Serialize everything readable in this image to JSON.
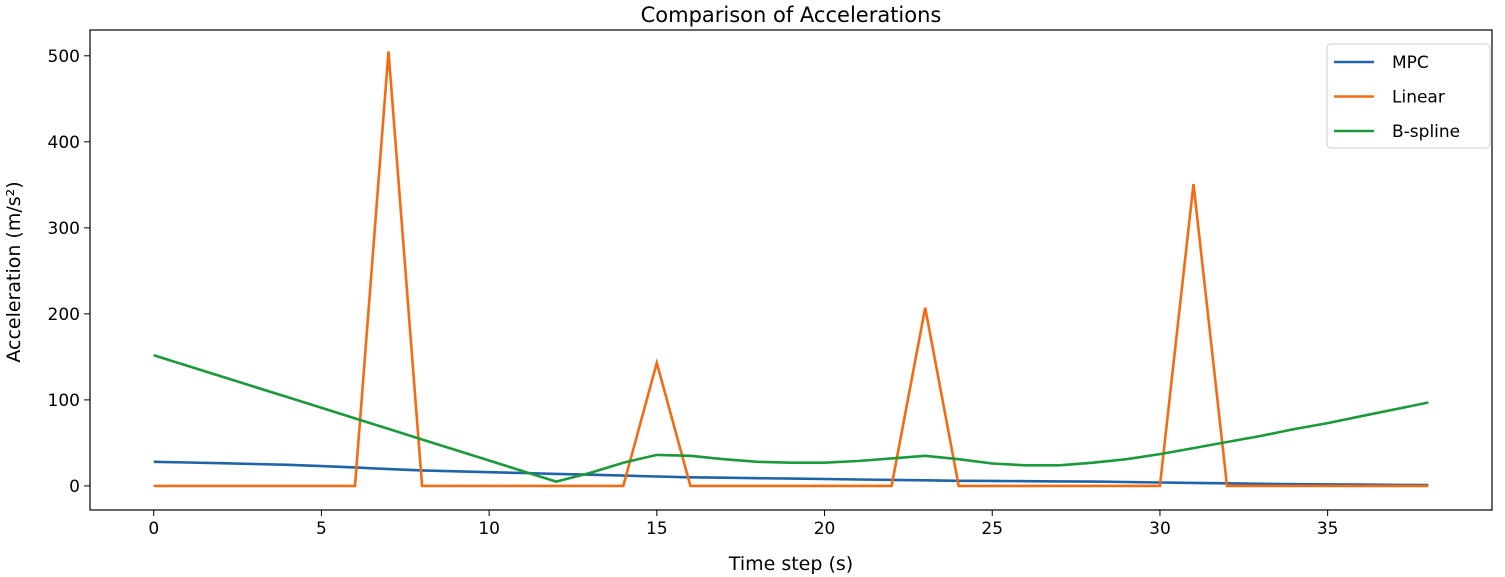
{
  "chart_data": {
    "type": "line",
    "title": "Comparison of Accelerations",
    "xlabel": "Time step (s)",
    "ylabel": "Acceleration (m/s²)",
    "xlim": [
      -1.9,
      39.9
    ],
    "ylim": [
      -28,
      530
    ],
    "xticks": [
      0,
      5,
      10,
      15,
      20,
      25,
      30,
      35
    ],
    "yticks": [
      0,
      100,
      200,
      300,
      400,
      500
    ],
    "grid": false,
    "legend_position": "top-right",
    "x": [
      0,
      1,
      2,
      3,
      4,
      5,
      6,
      7,
      8,
      9,
      10,
      11,
      12,
      13,
      14,
      15,
      16,
      17,
      18,
      19,
      20,
      21,
      22,
      23,
      24,
      25,
      26,
      27,
      28,
      29,
      30,
      31,
      32,
      33,
      34,
      35,
      36,
      37,
      38
    ],
    "series": [
      {
        "name": "MPC",
        "color": "#1f63a8",
        "values": [
          28,
          27.2,
          26.4,
          25.5,
          24.6,
          23,
          21.5,
          19.5,
          18,
          17,
          16,
          15,
          14,
          13,
          12,
          11,
          10,
          9.5,
          9,
          8.5,
          8,
          7.5,
          7,
          6.5,
          6,
          5.8,
          5.5,
          5.2,
          5,
          4.5,
          4,
          3.5,
          3,
          2.5,
          2,
          1.8,
          1.5,
          1.2,
          1
        ]
      },
      {
        "name": "Linear",
        "color": "#f46b12",
        "values": [
          0,
          0,
          0,
          0,
          0,
          0,
          0,
          505,
          0,
          0,
          0,
          0,
          0,
          0,
          0,
          143,
          0,
          0,
          0,
          0,
          0,
          0,
          0,
          207,
          0,
          0,
          0,
          0,
          0,
          0,
          0,
          351,
          0,
          0,
          0,
          0,
          0,
          0,
          0
        ]
      },
      {
        "name": "B-spline",
        "color": "#1a9a3a",
        "values": [
          152,
          139.75,
          127.5,
          115.25,
          103,
          90.75,
          78.5,
          66.25,
          54,
          41.75,
          29.5,
          17.25,
          5,
          15,
          27,
          36,
          35,
          31,
          28,
          27,
          27,
          29,
          32,
          35,
          31,
          26,
          24,
          24,
          27,
          31,
          37,
          44,
          51,
          58,
          66,
          73,
          81,
          89,
          97
        ]
      }
    ]
  }
}
